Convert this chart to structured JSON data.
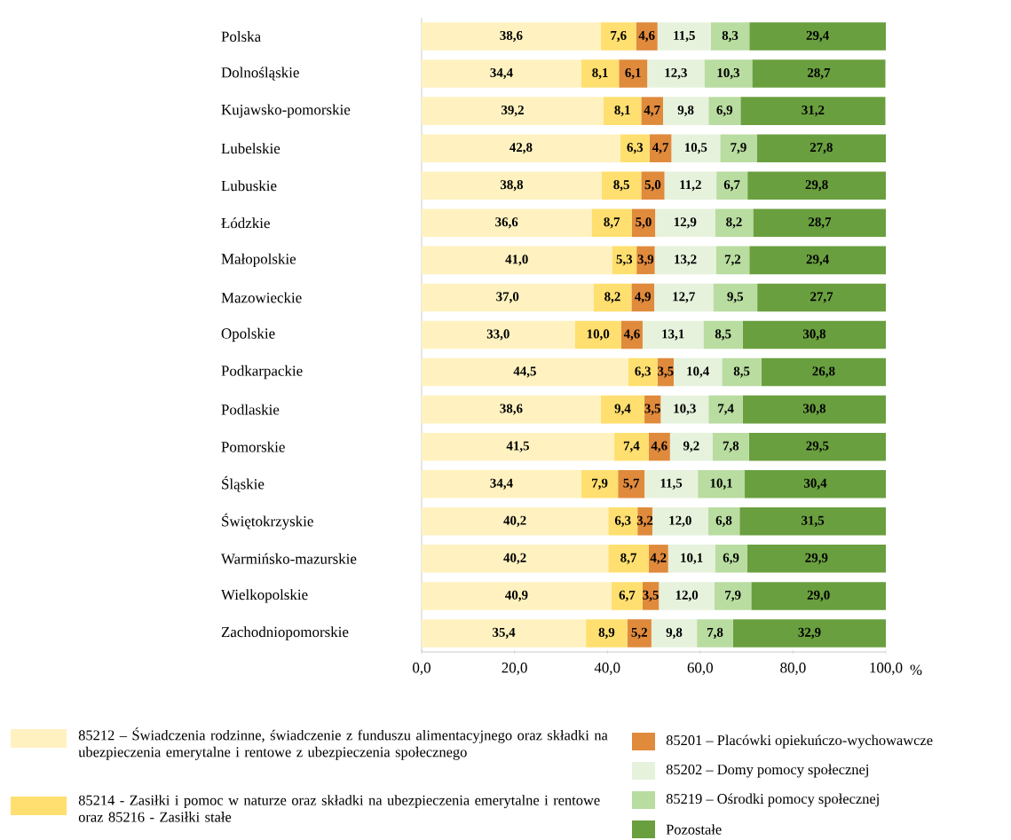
{
  "chart_data": {
    "type": "bar",
    "orientation": "horizontal",
    "stacked": true,
    "xlabel": "%",
    "legend": "bottom",
    "categories": [
      "Polska",
      "Dolnośląskie",
      "Kujawsko-pomorskie",
      "Lubelskie",
      "Lubuskie",
      "Łódzkie",
      "Małopolskie",
      "Mazowieckie",
      "Opolskie",
      "Podkarpackie",
      "Podlaskie",
      "Pomorskie",
      "Śląskie",
      "Świętokrzyskie",
      "Warmińsko-mazurskie",
      "Wielkopolskie",
      "Zachodniopomorskie"
    ],
    "xlim": [
      0,
      100
    ],
    "xticks": [
      {
        "value": 0,
        "label": "0,0"
      },
      {
        "value": 20,
        "label": "20,0"
      },
      {
        "value": 40,
        "label": "40,0"
      },
      {
        "value": 60,
        "label": "60,0"
      },
      {
        "value": 80,
        "label": "80,0"
      },
      {
        "value": 100,
        "label": "100,0"
      }
    ],
    "series": [
      {
        "name": "85212 – Świadczenia rodzinne, świadczenie z funduszu alimentacyjnego oraz składki na ubezpieczenia emerytalne i rentowe z ubezpieczenia społecznego",
        "color": "#fff2c0",
        "values": [
          38.6,
          34.4,
          39.2,
          42.8,
          38.8,
          36.6,
          41.0,
          37.0,
          33.0,
          44.5,
          38.6,
          41.5,
          34.4,
          40.2,
          40.2,
          40.9,
          35.4
        ],
        "value_labels": [
          "38,6",
          "34,4",
          "39,2",
          "42,8",
          "38,8",
          "36,6",
          "41,0",
          "37,0",
          "33,0",
          "44,5",
          "38,6",
          "41,5",
          "34,4",
          "40,2",
          "40,2",
          "40,9",
          "35,4"
        ]
      },
      {
        "name": "85214 - Zasiłki i pomoc w naturze oraz składki na ubezpieczenia emerytalne i rentowe oraz 85216 - Zasiłki stałe",
        "color": "#ffdf6f",
        "values": [
          7.6,
          8.1,
          8.1,
          6.3,
          8.5,
          8.7,
          5.3,
          8.2,
          10.0,
          6.3,
          9.4,
          7.4,
          7.9,
          6.3,
          8.7,
          6.7,
          8.9
        ],
        "value_labels": [
          "7,6",
          "8,1",
          "8,1",
          "6,3",
          "8,5",
          "8,7",
          "5,3",
          "8,2",
          "10,0",
          "6,3",
          "9,4",
          "7,4",
          "7,9",
          "6,3",
          "8,7",
          "6,7",
          "8,9"
        ]
      },
      {
        "name": "85201 – Placówki opiekuńczo-wychowawcze",
        "color": "#e08a3c",
        "values": [
          4.6,
          6.1,
          4.7,
          4.7,
          5.0,
          5.0,
          3.9,
          4.9,
          4.6,
          3.5,
          3.5,
          4.6,
          5.7,
          3.2,
          4.2,
          3.5,
          5.2
        ],
        "value_labels": [
          "4,6",
          "6,1",
          "4,7",
          "4,7",
          "5,0",
          "5,0",
          "3,9",
          "4,9",
          "4,6",
          "3,5",
          "3,5",
          "4,6",
          "5,7",
          "3,2",
          "4,2",
          "3,5",
          "5,2"
        ]
      },
      {
        "name": "85202 – Domy pomocy społecznej",
        "color": "#e6f2dc",
        "values": [
          11.5,
          12.3,
          9.8,
          10.5,
          11.2,
          12.9,
          13.2,
          12.7,
          13.1,
          10.4,
          10.3,
          9.2,
          11.5,
          12.0,
          10.1,
          12.0,
          9.8
        ],
        "value_labels": [
          "11,5",
          "12,3",
          "9,8",
          "10,5",
          "11,2",
          "12,9",
          "13,2",
          "12,7",
          "13,1",
          "10,4",
          "10,3",
          "9,2",
          "11,5",
          "12,0",
          "10,1",
          "12,0",
          "9,8"
        ]
      },
      {
        "name": "85219 – Ośrodki pomocy  społecznej",
        "color": "#b9dca0",
        "values": [
          8.3,
          10.3,
          6.9,
          7.9,
          6.7,
          8.2,
          7.2,
          9.5,
          8.5,
          8.5,
          7.4,
          7.8,
          10.1,
          6.8,
          6.9,
          7.9,
          7.8
        ],
        "value_labels": [
          "8,3",
          "10,3",
          "6,9",
          "7,9",
          "6,7",
          "8,2",
          "7,2",
          "9,5",
          "8,5",
          "8,5",
          "7,4",
          "7,8",
          "10,1",
          "6,8",
          "6,9",
          "7,9",
          "7,8"
        ]
      },
      {
        "name": "Pozostałe",
        "color": "#6a9f3f",
        "values": [
          29.4,
          28.7,
          31.2,
          27.8,
          29.8,
          28.7,
          29.4,
          27.7,
          30.8,
          26.8,
          30.8,
          29.5,
          30.4,
          31.5,
          29.9,
          29.0,
          32.9
        ],
        "value_labels": [
          "29,4",
          "28,7",
          "31,2",
          "27,8",
          "29,8",
          "28,7",
          "29,4",
          "27,7",
          "30,8",
          "26,8",
          "30,8",
          "29,5",
          "30,4",
          "31,5",
          "29,9",
          "29,0",
          "32,9"
        ]
      }
    ]
  }
}
